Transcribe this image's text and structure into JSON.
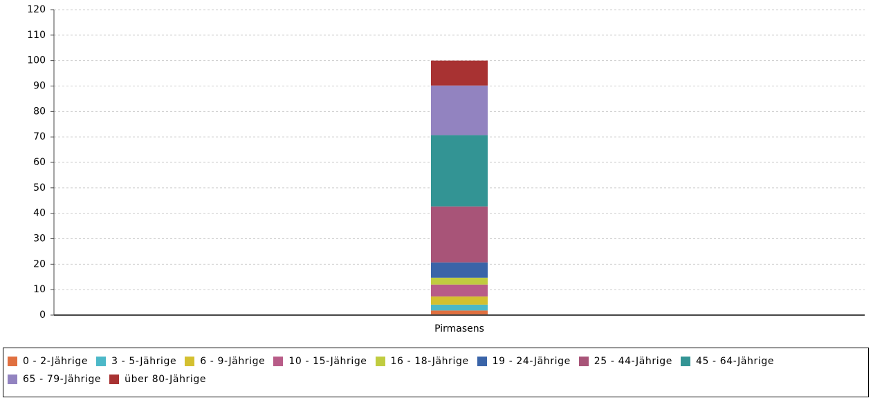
{
  "chart_data": {
    "type": "stacked_bar",
    "categories": [
      "Pirmasens"
    ],
    "series": [
      {
        "name": "0 - 2-Jährige",
        "color": "#e07040",
        "values": [
          1.8
        ]
      },
      {
        "name": "3 - 5-Jährige",
        "color": "#4cb8c8",
        "values": [
          2.3
        ]
      },
      {
        "name": "6 - 9-Jährige",
        "color": "#d4c030",
        "values": [
          3.2
        ]
      },
      {
        "name": "10 - 15-Jährige",
        "color": "#b85c88",
        "values": [
          4.7
        ]
      },
      {
        "name": "16 - 18-Jährige",
        "color": "#c0cc40",
        "values": [
          2.7
        ]
      },
      {
        "name": "19 - 24-Jährige",
        "color": "#3a64a8",
        "values": [
          6
        ]
      },
      {
        "name": "25 - 44-Jährige",
        "color": "#a85478",
        "values": [
          22
        ]
      },
      {
        "name": "45 - 64-Jährige",
        "color": "#339494",
        "values": [
          28
        ]
      },
      {
        "name": "65 - 79-Jährige",
        "color": "#9283c0",
        "values": [
          19.5
        ]
      },
      {
        "name": "über 80-Jährige",
        "color": "#a83232",
        "values": [
          9.8
        ]
      }
    ],
    "ylim": [
      0,
      120
    ],
    "yticks": [
      0,
      10,
      20,
      30,
      40,
      50,
      60,
      70,
      80,
      90,
      100,
      110,
      120
    ],
    "grid": true,
    "legend": "bottom"
  }
}
